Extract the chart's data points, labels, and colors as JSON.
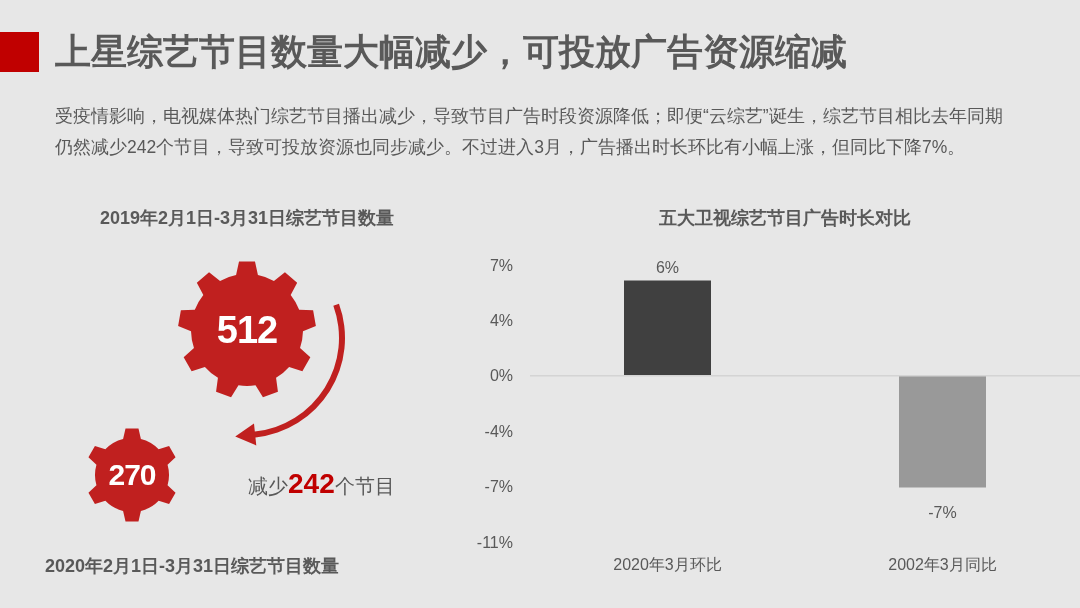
{
  "chart_data": [
    {
      "type": "other",
      "title": "上星综艺节目数量大幅减少，可投放广告资源缩减",
      "subtitle": "受疫情影响，电视媒体热门综艺节目播出减少，导致节目广告时段资源降低；即便“云综艺”诞生，综艺节目相比去年同期仍然减少242个节目，导致可投放资源也同步减少。不过进入3月，广告播出时长环比有小幅上涨，但同比下降7%。",
      "categories": [
        "2019年2月1日-3月31日综艺节目数量",
        "2020年2月1日-3月31日综艺节目数量"
      ],
      "values": [
        512,
        270
      ],
      "data_labels": true,
      "colors": [
        "#c0201f",
        "#c0201f"
      ],
      "annotations": [
        "减少242个节目"
      ]
    },
    {
      "type": "bar",
      "title": "五大卫视综艺节目广告时长对比",
      "categories": [
        "2020年3月环比",
        "2002年3月同比"
      ],
      "values": [
        6.3,
        -7.4
      ],
      "colors": [
        "#404040",
        "#999999"
      ],
      "value_labels": [
        "6%",
        "-7%"
      ],
      "ylim": [
        -11,
        7.33
      ],
      "yticks": [
        {
          "value": 7.33,
          "label": "7%"
        },
        {
          "value": 3.67,
          "label": "4%"
        },
        {
          "value": 0,
          "label": "0%"
        },
        {
          "value": -3.67,
          "label": "-4%"
        },
        {
          "value": -7.33,
          "label": "-7%"
        },
        {
          "value": -11,
          "label": "-11%"
        }
      ]
    }
  ]
}
